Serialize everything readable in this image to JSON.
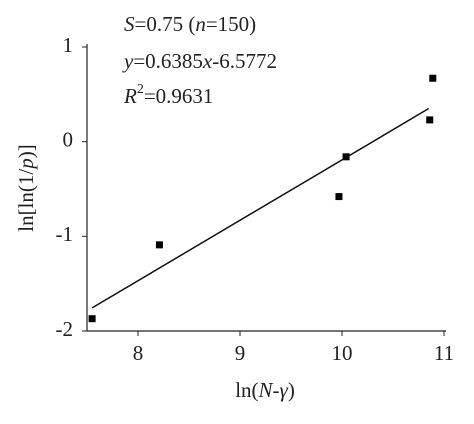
{
  "chart_data": {
    "type": "scatter",
    "annotations": [
      [
        "S",
        "=0.75 (",
        "n",
        "=150)"
      ],
      [
        "y",
        "=0.6385",
        "x",
        "-6.5772"
      ],
      [
        "R",
        "2",
        "=0.9631"
      ]
    ],
    "y_label": [
      "ln[ln(1/",
      "p",
      ")]"
    ],
    "x_label": [
      "ln(",
      "N",
      "-",
      "γ",
      ")"
    ],
    "x": [
      7.55,
      8.21,
      9.97,
      10.04,
      10.86,
      10.89
    ],
    "values": [
      -1.87,
      -1.09,
      -0.58,
      -0.16,
      0.23,
      0.67
    ],
    "color": "#000000",
    "fit": {
      "x": [
        7.55,
        10.85
      ],
      "values": [
        -1.756,
        0.35
      ]
    },
    "xlim": [
      7.5,
      11
    ],
    "ylim": [
      -2,
      1
    ],
    "xticks": [
      8,
      9,
      10,
      11
    ],
    "yticks": [
      1,
      0,
      -1,
      -2
    ]
  }
}
